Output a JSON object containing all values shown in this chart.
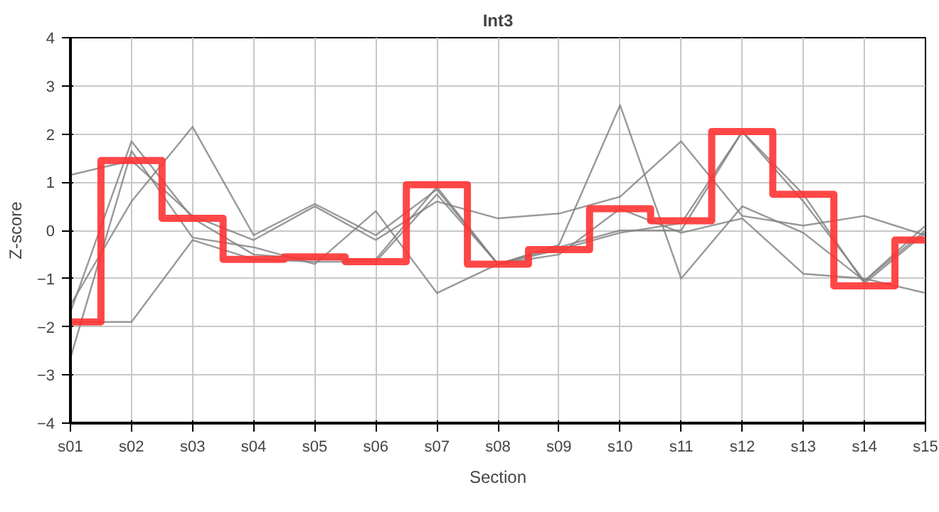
{
  "chart_data": {
    "type": "line",
    "title": "Int3",
    "xlabel": "Section",
    "ylabel": "Z-score",
    "categories": [
      "s01",
      "s02",
      "s03",
      "s04",
      "s05",
      "s06",
      "s07",
      "s08",
      "s09",
      "s10",
      "s11",
      "s12",
      "s13",
      "s14",
      "s15"
    ],
    "ylim": [
      -4,
      4
    ],
    "yticks": [
      -4,
      -3,
      -2,
      -1,
      0,
      1,
      2,
      3,
      4
    ],
    "grid": true,
    "series": [
      {
        "color": "#808080",
        "values": [
          -1.55,
          0.6,
          2.15,
          -0.1,
          0.55,
          -0.1,
          0.85,
          -0.7,
          -0.3,
          2.6,
          -1.0,
          0.5,
          -0.05,
          -1.05,
          0.1
        ]
      },
      {
        "color": "#808080",
        "values": [
          1.15,
          1.45,
          0.3,
          -0.2,
          0.5,
          -0.2,
          0.6,
          0.25,
          0.35,
          0.7,
          1.85,
          0.3,
          0.1,
          0.3,
          -0.1
        ]
      },
      {
        "color": "#808080",
        "values": [
          -1.7,
          1.85,
          0.25,
          -0.5,
          -0.6,
          -0.6,
          0.9,
          -0.7,
          -0.35,
          0.0,
          0.0,
          2.05,
          0.6,
          -1.05,
          0.0
        ]
      },
      {
        "color": "#808080",
        "values": [
          -2.65,
          1.65,
          -0.15,
          -0.35,
          -0.7,
          0.4,
          -1.3,
          -0.7,
          -0.4,
          -0.05,
          0.15,
          2.05,
          0.75,
          -1.1,
          -0.05
        ]
      },
      {
        "color": "#808080",
        "values": [
          -1.9,
          -1.9,
          -0.2,
          -0.6,
          -0.65,
          -0.65,
          0.75,
          -0.7,
          -0.5,
          0.45,
          -0.05,
          0.25,
          -0.9,
          -1.0,
          -1.3
        ]
      },
      {
        "type": "step",
        "color": "#ff3333",
        "values": [
          -1.9,
          1.45,
          0.25,
          -0.6,
          -0.55,
          -0.65,
          0.95,
          -0.7,
          -0.4,
          0.45,
          0.2,
          2.05,
          0.75,
          -1.15,
          -0.2
        ]
      }
    ]
  }
}
